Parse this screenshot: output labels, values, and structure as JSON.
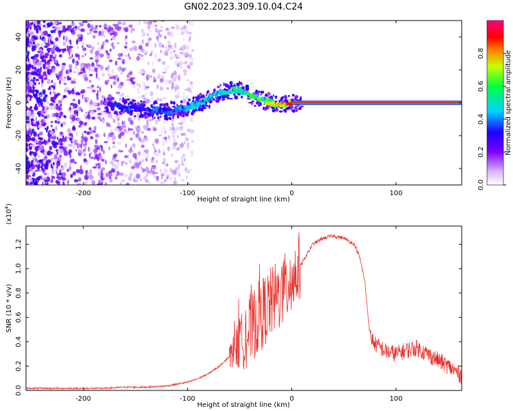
{
  "title": "GN02.2023.309.10.04.C24",
  "chart_data": [
    {
      "type": "heatmap",
      "xlabel": "Height of straight line (km)",
      "ylabel": "Frequency (Hz)",
      "xlim": [
        -255,
        163
      ],
      "ylim": [
        -50,
        50
      ],
      "x_ticks": [
        -200,
        -100,
        0,
        100
      ],
      "y_ticks": [
        -40,
        -20,
        0,
        20,
        40
      ],
      "colorbar": {
        "label": "Normalized spectral amplitude",
        "range": [
          0,
          1
        ],
        "ticks": [
          "0.0",
          "0.2",
          "0.4",
          "0.6",
          "0.8"
        ],
        "colormap": "white-purple-blue-cyan-green-yellow-red-magenta"
      },
      "ridge": [
        {
          "x": -170,
          "f": -2,
          "amp": 0.35
        },
        {
          "x": -140,
          "f": -4,
          "amp": 0.35
        },
        {
          "x": -120,
          "f": -5,
          "amp": 0.4
        },
        {
          "x": -100,
          "f": -3,
          "amp": 0.45
        },
        {
          "x": -80,
          "f": 2,
          "amp": 0.5
        },
        {
          "x": -65,
          "f": 7,
          "amp": 0.5
        },
        {
          "x": -50,
          "f": 8,
          "amp": 0.55
        },
        {
          "x": -40,
          "f": 4,
          "amp": 0.6
        },
        {
          "x": -30,
          "f": 2,
          "amp": 0.65
        },
        {
          "x": -15,
          "f": -1,
          "amp": 0.75
        },
        {
          "x": 0,
          "f": 0,
          "amp": 0.9
        },
        {
          "x": 163,
          "f": 0,
          "amp": 0.9
        }
      ]
    },
    {
      "type": "line",
      "xlabel": "Height of straight line (km)",
      "ylabel": "SNR (10 * v/v)",
      "multiplier_label": "(x10",
      "multiplier_exp": "4",
      "multiplier_close": ")",
      "xlim": [
        -255,
        163
      ],
      "ylim": [
        0,
        1.35
      ],
      "x_ticks": [
        -200,
        -100,
        0,
        100
      ],
      "y_ticks": [
        "0.0",
        "0.2",
        "0.4",
        "0.6",
        "0.8",
        "1.0",
        "1.2"
      ],
      "series": [
        {
          "color": "#e8302a",
          "x": [
            -255,
            -230,
            -200,
            -180,
            -160,
            -140,
            -120,
            -100,
            -90,
            -80,
            -70,
            -60,
            -50,
            -40,
            -30,
            -20,
            -10,
            0,
            10,
            20,
            30,
            40,
            50,
            60,
            65,
            70,
            75,
            80,
            90,
            100,
            110,
            120,
            130,
            140,
            150,
            163
          ],
          "y": [
            0.02,
            0.02,
            0.02,
            0.02,
            0.03,
            0.03,
            0.04,
            0.07,
            0.1,
            0.14,
            0.2,
            0.28,
            0.38,
            0.5,
            0.62,
            0.72,
            0.8,
            0.9,
            1.05,
            1.2,
            1.25,
            1.27,
            1.25,
            1.2,
            1.1,
            0.9,
            0.45,
            0.38,
            0.32,
            0.3,
            0.33,
            0.35,
            0.3,
            0.25,
            0.2,
            0.12
          ],
          "spike_range": [
            -60,
            8
          ],
          "spike_peak": 1.32
        }
      ]
    }
  ]
}
